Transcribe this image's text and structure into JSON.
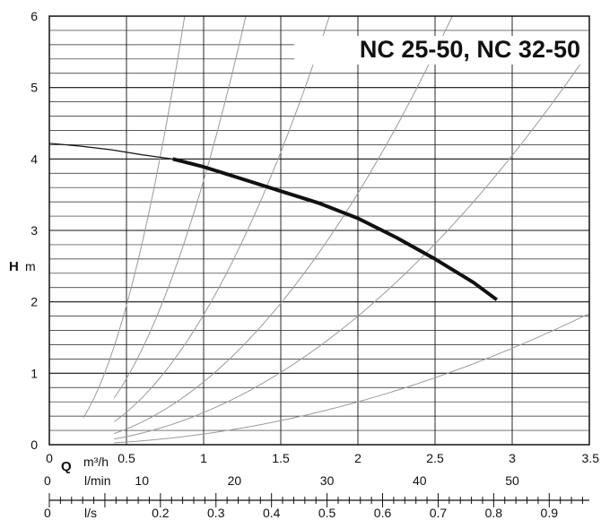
{
  "chart_data": {
    "type": "line",
    "title": "NC 25-50,  NC 32-50",
    "ylabel_symbol": "H",
    "ylabel_unit": "m",
    "xlabel_symbol": "Q",
    "xlabel_unit": "m³/h",
    "xlim": [
      0,
      3.5
    ],
    "ylim": [
      0,
      6
    ],
    "x_ticks": [
      "0",
      "0.5",
      "1",
      "1.5",
      "2",
      "2.5",
      "3",
      "3.5"
    ],
    "y_ticks": [
      "0",
      "1",
      "2",
      "3",
      "4",
      "5",
      "6"
    ],
    "lmin_axis": {
      "unit": "l/min",
      "ticks": [
        {
          "label": "0",
          "value": 0
        },
        {
          "label": "10",
          "value": 10
        },
        {
          "label": "20",
          "value": 20
        },
        {
          "label": "30",
          "value": 30
        },
        {
          "label": "40",
          "value": 40
        },
        {
          "label": "50",
          "value": 50
        }
      ]
    },
    "ls_axis": {
      "unit": "l/s",
      "ticks": [
        {
          "label": "0",
          "value": 0
        },
        {
          "label": "0.2",
          "value": 0.2
        },
        {
          "label": "0.3",
          "value": 0.3
        },
        {
          "label": "0.4",
          "value": 0.4
        },
        {
          "label": "0.5",
          "value": 0.5
        },
        {
          "label": "0.6",
          "value": 0.6
        },
        {
          "label": "0.7",
          "value": 0.7
        },
        {
          "label": "0.8",
          "value": 0.8
        },
        {
          "label": "0.9",
          "value": 0.9
        }
      ]
    },
    "grid": true,
    "series": [
      {
        "role": "pump-curve-extension",
        "color": "#111111",
        "x": [
          0,
          0.2,
          0.4,
          0.6,
          0.8
        ],
        "y": [
          4.22,
          4.18,
          4.13,
          4.06,
          4.0
        ]
      },
      {
        "role": "pump-curve",
        "color": "#111111",
        "x": [
          0.8,
          1.0,
          1.25,
          1.5,
          1.75,
          2.0,
          2.25,
          2.5,
          2.75,
          2.9
        ],
        "y": [
          4.0,
          3.89,
          3.72,
          3.55,
          3.38,
          3.17,
          2.9,
          2.6,
          2.27,
          2.03
        ]
      }
    ],
    "system_curves": [
      {
        "x_start": 0.22,
        "x_end": 0.88,
        "k": 7.8
      },
      {
        "x_start": 0.42,
        "x_end": 1.28,
        "k": 3.7
      },
      {
        "x_start": 0.42,
        "x_end": 1.85,
        "k": 1.82
      },
      {
        "x_start": 0.42,
        "x_end": 2.65,
        "k": 0.88
      },
      {
        "x_start": 0.42,
        "x_end": 3.5,
        "k": 0.45
      },
      {
        "x_start": 0.42,
        "x_end": 3.5,
        "k": 0.15
      }
    ]
  }
}
